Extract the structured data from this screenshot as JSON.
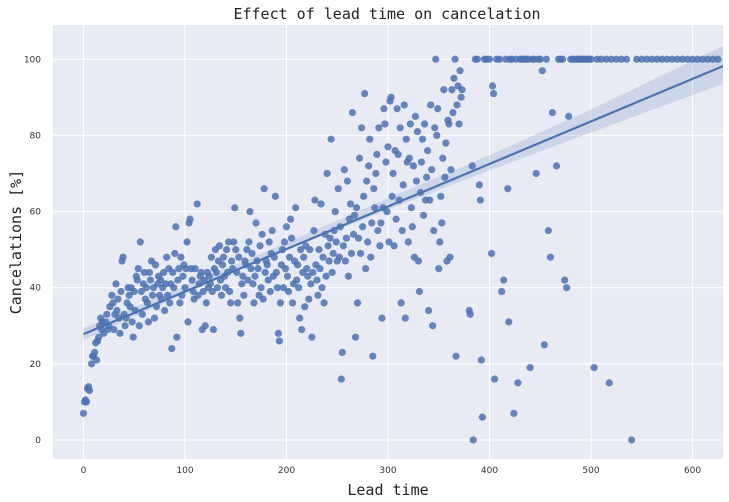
{
  "chart_data": {
    "type": "scatter",
    "title": "Effect of lead time on cancelation",
    "xlabel": "Lead time",
    "ylabel": "Cancelations [%]",
    "xlim": [
      -30,
      630
    ],
    "ylim": [
      -5,
      109
    ],
    "x_ticks": [
      0,
      100,
      200,
      300,
      400,
      500,
      600
    ],
    "y_ticks": [
      0,
      20,
      40,
      60,
      80,
      100
    ],
    "grid": true,
    "background_color": "#e9ebf4",
    "point_color": "#4c72b0",
    "regression_line": {
      "x": [
        0,
        630
      ],
      "y": [
        27.8,
        98.2
      ]
    },
    "confidence_band": {
      "x": [
        0,
        100,
        200,
        300,
        400,
        500,
        630
      ],
      "lower": [
        26.3,
        38.5,
        49.8,
        60.5,
        70.8,
        80.8,
        93.5
      ],
      "upper": [
        29.3,
        40.5,
        51.8,
        63.5,
        74.8,
        86.8,
        103.5
      ]
    },
    "points": [
      [
        0,
        7
      ],
      [
        1,
        10
      ],
      [
        2,
        10.5
      ],
      [
        3,
        10
      ],
      [
        4,
        13.5
      ],
      [
        5,
        14
      ],
      [
        6,
        13
      ],
      [
        8,
        20
      ],
      [
        9,
        22
      ],
      [
        10,
        22
      ],
      [
        11,
        23
      ],
      [
        12,
        25.5
      ],
      [
        13,
        21
      ],
      [
        14,
        26
      ],
      [
        15,
        27
      ],
      [
        16,
        30
      ],
      [
        17,
        32
      ],
      [
        18,
        29
      ],
      [
        19,
        31
      ],
      [
        20,
        28
      ],
      [
        22,
        31
      ],
      [
        23,
        33
      ],
      [
        24,
        29
      ],
      [
        25,
        30
      ],
      [
        26,
        35
      ],
      [
        28,
        38
      ],
      [
        29,
        36
      ],
      [
        30,
        29
      ],
      [
        31,
        33
      ],
      [
        32,
        41
      ],
      [
        33,
        34
      ],
      [
        34,
        37
      ],
      [
        35,
        32
      ],
      [
        36,
        28
      ],
      [
        37,
        39
      ],
      [
        38,
        47
      ],
      [
        39,
        48
      ],
      [
        40,
        33
      ],
      [
        41,
        30
      ],
      [
        42,
        32
      ],
      [
        43,
        36
      ],
      [
        44,
        40
      ],
      [
        45,
        38
      ],
      [
        46,
        35
      ],
      [
        47,
        40
      ],
      [
        48,
        31
      ],
      [
        49,
        27
      ],
      [
        50,
        39
      ],
      [
        51,
        34
      ],
      [
        52,
        43
      ],
      [
        53,
        42
      ],
      [
        54,
        45
      ],
      [
        55,
        30
      ],
      [
        56,
        52
      ],
      [
        57,
        39
      ],
      [
        58,
        33
      ],
      [
        59,
        41
      ],
      [
        60,
        44
      ],
      [
        61,
        37
      ],
      [
        62,
        40
      ],
      [
        63,
        36
      ],
      [
        64,
        31
      ],
      [
        65,
        44
      ],
      [
        66,
        42
      ],
      [
        67,
        47
      ],
      [
        68,
        38
      ],
      [
        69,
        40
      ],
      [
        70,
        32
      ],
      [
        71,
        46
      ],
      [
        72,
        35
      ],
      [
        73,
        41
      ],
      [
        74,
        43
      ],
      [
        75,
        38
      ],
      [
        76,
        42
      ],
      [
        77,
        37
      ],
      [
        78,
        40
      ],
      [
        79,
        44
      ],
      [
        80,
        34
      ],
      [
        81,
        41
      ],
      [
        82,
        48
      ],
      [
        83,
        38
      ],
      [
        84,
        45
      ],
      [
        85,
        36
      ],
      [
        86,
        41
      ],
      [
        87,
        24
      ],
      [
        88,
        44
      ],
      [
        89,
        40
      ],
      [
        90,
        49
      ],
      [
        91,
        56
      ],
      [
        92,
        27
      ],
      [
        93,
        42
      ],
      [
        94,
        45
      ],
      [
        95,
        36
      ],
      [
        96,
        48
      ],
      [
        97,
        38
      ],
      [
        98,
        43
      ],
      [
        99,
        46
      ],
      [
        100,
        40
      ],
      [
        101,
        45
      ],
      [
        102,
        52
      ],
      [
        103,
        31
      ],
      [
        104,
        57
      ],
      [
        105,
        58
      ],
      [
        106,
        45
      ],
      [
        107,
        42
      ],
      [
        108,
        39
      ],
      [
        109,
        37
      ],
      [
        110,
        45
      ],
      [
        112,
        62
      ],
      [
        113,
        38
      ],
      [
        114,
        41
      ],
      [
        115,
        43
      ],
      [
        116,
        44
      ],
      [
        117,
        29
      ],
      [
        118,
        39
      ],
      [
        119,
        42
      ],
      [
        120,
        30
      ],
      [
        121,
        36
      ],
      [
        122,
        44
      ],
      [
        123,
        40
      ],
      [
        124,
        43
      ],
      [
        125,
        41
      ],
      [
        126,
        48
      ],
      [
        127,
        39
      ],
      [
        128,
        29
      ],
      [
        129,
        45
      ],
      [
        130,
        50
      ],
      [
        131,
        44
      ],
      [
        132,
        40
      ],
      [
        133,
        47
      ],
      [
        134,
        51
      ],
      [
        135,
        42
      ],
      [
        136,
        38
      ],
      [
        137,
        46
      ],
      [
        138,
        48
      ],
      [
        139,
        43
      ],
      [
        140,
        40
      ],
      [
        141,
        50
      ],
      [
        142,
        44
      ],
      [
        143,
        52
      ],
      [
        144,
        39
      ],
      [
        145,
        36
      ],
      [
        146,
        47
      ],
      [
        147,
        45
      ],
      [
        148,
        52
      ],
      [
        149,
        61
      ],
      [
        150,
        50
      ],
      [
        151,
        44
      ],
      [
        152,
        36
      ],
      [
        153,
        48
      ],
      [
        154,
        32
      ],
      [
        155,
        28
      ],
      [
        156,
        41
      ],
      [
        157,
        43
      ],
      [
        158,
        38
      ],
      [
        159,
        47
      ],
      [
        160,
        46
      ],
      [
        161,
        50
      ],
      [
        162,
        42
      ],
      [
        163,
        52
      ],
      [
        164,
        60
      ],
      [
        165,
        45
      ],
      [
        166,
        49
      ],
      [
        167,
        41
      ],
      [
        168,
        36
      ],
      [
        169,
        43
      ],
      [
        170,
        57
      ],
      [
        171,
        47
      ],
      [
        172,
        45
      ],
      [
        173,
        38
      ],
      [
        174,
        51
      ],
      [
        175,
        40
      ],
      [
        176,
        54
      ],
      [
        177,
        37
      ],
      [
        178,
        66
      ],
      [
        179,
        44
      ],
      [
        180,
        47
      ],
      [
        181,
        46
      ],
      [
        182,
        42
      ],
      [
        183,
        52
      ],
      [
        184,
        39
      ],
      [
        185,
        49
      ],
      [
        186,
        55
      ],
      [
        187,
        43
      ],
      [
        188,
        48
      ],
      [
        189,
        64
      ],
      [
        190,
        44
      ],
      [
        191,
        40
      ],
      [
        192,
        28
      ],
      [
        193,
        26
      ],
      [
        194,
        36
      ],
      [
        195,
        46
      ],
      [
        196,
        50
      ],
      [
        197,
        40
      ],
      [
        198,
        52
      ],
      [
        199,
        45
      ],
      [
        200,
        56
      ],
      [
        201,
        43
      ],
      [
        202,
        39
      ],
      [
        203,
        48
      ],
      [
        204,
        58
      ],
      [
        205,
        53
      ],
      [
        206,
        36
      ],
      [
        207,
        41
      ],
      [
        208,
        47
      ],
      [
        209,
        61
      ],
      [
        210,
        42
      ],
      [
        211,
        46
      ],
      [
        212,
        40
      ],
      [
        213,
        32
      ],
      [
        214,
        50
      ],
      [
        215,
        29
      ],
      [
        216,
        44
      ],
      [
        217,
        48
      ],
      [
        218,
        35
      ],
      [
        219,
        51
      ],
      [
        220,
        45
      ],
      [
        221,
        43
      ],
      [
        222,
        37
      ],
      [
        223,
        50
      ],
      [
        224,
        41
      ],
      [
        225,
        27
      ],
      [
        226,
        44
      ],
      [
        227,
        55
      ],
      [
        228,
        63
      ],
      [
        229,
        46
      ],
      [
        230,
        42
      ],
      [
        231,
        38
      ],
      [
        232,
        50
      ],
      [
        233,
        45
      ],
      [
        234,
        62
      ],
      [
        235,
        40
      ],
      [
        236,
        48
      ],
      [
        237,
        36
      ],
      [
        238,
        54
      ],
      [
        239,
        43
      ],
      [
        240,
        70
      ],
      [
        241,
        51
      ],
      [
        242,
        47
      ],
      [
        243,
        53
      ],
      [
        244,
        79
      ],
      [
        245,
        44
      ],
      [
        246,
        49
      ],
      [
        247,
        55
      ],
      [
        248,
        60
      ],
      [
        249,
        52
      ],
      [
        250,
        47
      ],
      [
        251,
        66
      ],
      [
        252,
        48
      ],
      [
        253,
        56
      ],
      [
        254,
        16
      ],
      [
        255,
        23
      ],
      [
        256,
        51
      ],
      [
        257,
        71
      ],
      [
        258,
        47
      ],
      [
        259,
        53
      ],
      [
        260,
        68
      ],
      [
        261,
        43
      ],
      [
        262,
        58
      ],
      [
        263,
        62
      ],
      [
        264,
        49
      ],
      [
        265,
        86
      ],
      [
        266,
        54
      ],
      [
        267,
        59
      ],
      [
        268,
        27
      ],
      [
        269,
        61
      ],
      [
        270,
        36
      ],
      [
        271,
        53
      ],
      [
        272,
        74
      ],
      [
        273,
        49
      ],
      [
        274,
        82
      ],
      [
        275,
        56
      ],
      [
        276,
        64
      ],
      [
        277,
        91
      ],
      [
        278,
        45
      ],
      [
        279,
        68
      ],
      [
        280,
        52
      ],
      [
        281,
        72
      ],
      [
        282,
        79
      ],
      [
        283,
        48
      ],
      [
        284,
        57
      ],
      [
        285,
        22
      ],
      [
        286,
        66
      ],
      [
        287,
        61
      ],
      [
        288,
        70
      ],
      [
        289,
        75
      ],
      [
        290,
        55
      ],
      [
        291,
        82
      ],
      [
        292,
        51
      ],
      [
        293,
        57
      ],
      [
        294,
        32
      ],
      [
        295,
        61
      ],
      [
        296,
        87
      ],
      [
        297,
        83
      ],
      [
        298,
        73
      ],
      [
        299,
        60
      ],
      [
        300,
        77
      ],
      [
        301,
        52
      ],
      [
        302,
        89
      ],
      [
        303,
        90
      ],
      [
        304,
        64
      ],
      [
        305,
        70
      ],
      [
        306,
        51
      ],
      [
        307,
        76
      ],
      [
        308,
        58
      ],
      [
        309,
        87
      ],
      [
        310,
        75
      ],
      [
        311,
        63
      ],
      [
        312,
        82
      ],
      [
        313,
        36
      ],
      [
        314,
        55
      ],
      [
        315,
        67
      ],
      [
        316,
        88
      ],
      [
        317,
        32
      ],
      [
        318,
        79
      ],
      [
        319,
        73
      ],
      [
        320,
        52
      ],
      [
        321,
        74
      ],
      [
        322,
        83
      ],
      [
        323,
        61
      ],
      [
        324,
        56
      ],
      [
        325,
        72
      ],
      [
        326,
        48
      ],
      [
        327,
        85
      ],
      [
        328,
        68
      ],
      [
        329,
        81
      ],
      [
        330,
        47
      ],
      [
        331,
        39
      ],
      [
        332,
        65
      ],
      [
        333,
        73
      ],
      [
        334,
        79
      ],
      [
        335,
        59
      ],
      [
        336,
        83
      ],
      [
        337,
        63
      ],
      [
        338,
        69
      ],
      [
        339,
        76
      ],
      [
        340,
        34
      ],
      [
        341,
        63
      ],
      [
        342,
        88
      ],
      [
        343,
        71
      ],
      [
        344,
        30
      ],
      [
        345,
        55
      ],
      [
        346,
        82
      ],
      [
        347,
        100
      ],
      [
        348,
        80
      ],
      [
        349,
        87
      ],
      [
        350,
        45
      ],
      [
        351,
        52
      ],
      [
        352,
        64
      ],
      [
        353,
        57
      ],
      [
        354,
        74
      ],
      [
        355,
        92
      ],
      [
        356,
        69
      ],
      [
        357,
        78
      ],
      [
        358,
        47
      ],
      [
        359,
        84
      ],
      [
        360,
        83
      ],
      [
        361,
        48
      ],
      [
        362,
        71
      ],
      [
        363,
        92
      ],
      [
        364,
        86
      ],
      [
        365,
        95
      ],
      [
        366,
        100
      ],
      [
        367,
        22
      ],
      [
        368,
        88
      ],
      [
        369,
        93
      ],
      [
        370,
        83
      ],
      [
        371,
        97
      ],
      [
        372,
        90
      ],
      [
        373,
        92
      ],
      [
        380,
        34
      ],
      [
        381,
        33
      ],
      [
        383,
        72
      ],
      [
        384,
        0
      ],
      [
        386,
        100
      ],
      [
        388,
        100
      ],
      [
        390,
        67
      ],
      [
        391,
        63
      ],
      [
        392,
        21
      ],
      [
        393,
        6
      ],
      [
        395,
        100
      ],
      [
        397,
        100
      ],
      [
        400,
        100
      ],
      [
        402,
        49
      ],
      [
        403,
        93
      ],
      [
        404,
        91
      ],
      [
        405,
        16
      ],
      [
        407,
        100
      ],
      [
        410,
        100
      ],
      [
        412,
        39
      ],
      [
        414,
        42
      ],
      [
        416,
        100
      ],
      [
        418,
        66
      ],
      [
        419,
        31
      ],
      [
        420,
        100
      ],
      [
        422,
        100
      ],
      [
        424,
        7
      ],
      [
        426,
        100
      ],
      [
        428,
        15
      ],
      [
        430,
        100
      ],
      [
        432,
        100
      ],
      [
        434,
        100
      ],
      [
        436,
        100
      ],
      [
        438,
        100
      ],
      [
        440,
        19
      ],
      [
        442,
        100
      ],
      [
        444,
        100
      ],
      [
        446,
        70
      ],
      [
        448,
        100
      ],
      [
        450,
        100
      ],
      [
        452,
        97
      ],
      [
        454,
        25
      ],
      [
        456,
        100
      ],
      [
        458,
        55
      ],
      [
        460,
        48
      ],
      [
        462,
        86
      ],
      [
        466,
        72
      ],
      [
        468,
        100
      ],
      [
        470,
        100
      ],
      [
        472,
        100
      ],
      [
        474,
        42
      ],
      [
        476,
        40
      ],
      [
        478,
        85
      ],
      [
        480,
        100
      ],
      [
        482,
        100
      ],
      [
        484,
        100
      ],
      [
        486,
        100
      ],
      [
        488,
        100
      ],
      [
        490,
        100
      ],
      [
        492,
        100
      ],
      [
        494,
        100
      ],
      [
        496,
        100
      ],
      [
        498,
        100
      ],
      [
        500,
        100
      ],
      [
        503,
        19
      ],
      [
        506,
        100
      ],
      [
        510,
        100
      ],
      [
        515,
        100
      ],
      [
        518,
        15
      ],
      [
        520,
        100
      ],
      [
        525,
        100
      ],
      [
        530,
        100
      ],
      [
        535,
        100
      ],
      [
        540,
        0
      ],
      [
        545,
        100
      ],
      [
        550,
        100
      ],
      [
        555,
        100
      ],
      [
        560,
        100
      ],
      [
        565,
        100
      ],
      [
        570,
        100
      ],
      [
        575,
        100
      ],
      [
        580,
        100
      ],
      [
        585,
        100
      ],
      [
        590,
        100
      ],
      [
        595,
        100
      ],
      [
        600,
        100
      ],
      [
        605,
        100
      ],
      [
        610,
        100
      ],
      [
        615,
        100
      ],
      [
        620,
        100
      ],
      [
        625,
        100
      ]
    ]
  }
}
